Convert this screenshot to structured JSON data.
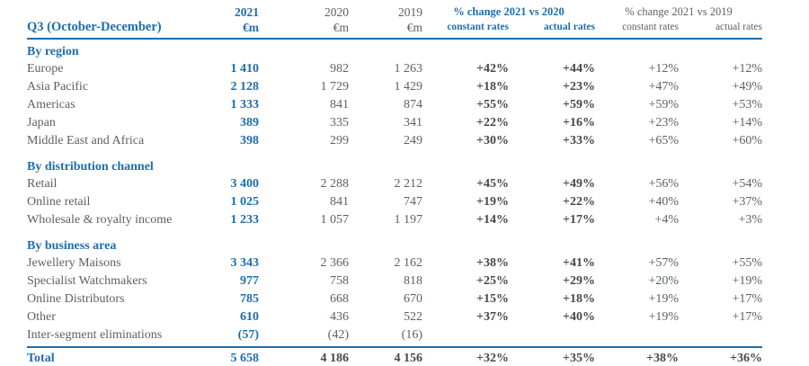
{
  "colors": {
    "accent_blue": "#1f6dad",
    "text_gray": "#5d6167",
    "text_dark": "#44474c"
  },
  "header": {
    "row_title": "Q3 (October-December)",
    "years": [
      {
        "label": "2021",
        "unit": "€m"
      },
      {
        "label": "2020",
        "unit": "€m"
      },
      {
        "label": "2019",
        "unit": "€m"
      }
    ],
    "groups": [
      {
        "label": "% change 2021 vs 2020",
        "sub_constant": "constant rates",
        "sub_actual": "actual rates"
      },
      {
        "label": "% change 2021 vs 2019",
        "sub_constant": "constant rates",
        "sub_actual": "actual rates"
      }
    ]
  },
  "sections": [
    {
      "title": "By region",
      "rows": [
        {
          "label": "Europe",
          "y2021": "1 410",
          "y2020": "982",
          "y2019": "1 263",
          "c20": "+42%",
          "a20": "+44%",
          "c19": "+12%",
          "a19": "+12%"
        },
        {
          "label": "Asia Pacific",
          "y2021": "2 128",
          "y2020": "1 729",
          "y2019": "1 429",
          "c20": "+18%",
          "a20": "+23%",
          "c19": "+47%",
          "a19": "+49%"
        },
        {
          "label": "Americas",
          "y2021": "1 333",
          "y2020": "841",
          "y2019": "874",
          "c20": "+55%",
          "a20": "+59%",
          "c19": "+59%",
          "a19": "+53%"
        },
        {
          "label": "Japan",
          "y2021": "389",
          "y2020": "335",
          "y2019": "341",
          "c20": "+22%",
          "a20": "+16%",
          "c19": "+23%",
          "a19": "+14%"
        },
        {
          "label": "Middle East and Africa",
          "y2021": "398",
          "y2020": "299",
          "y2019": "249",
          "c20": "+30%",
          "a20": "+33%",
          "c19": "+65%",
          "a19": "+60%"
        }
      ]
    },
    {
      "title": "By distribution channel",
      "rows": [
        {
          "label": "Retail",
          "y2021": "3 400",
          "y2020": "2 288",
          "y2019": "2 212",
          "c20": "+45%",
          "a20": "+49%",
          "c19": "+56%",
          "a19": "+54%"
        },
        {
          "label": "Online retail",
          "y2021": "1 025",
          "y2020": "841",
          "y2019": "747",
          "c20": "+19%",
          "a20": "+22%",
          "c19": "+40%",
          "a19": "+37%"
        },
        {
          "label": "Wholesale & royalty income",
          "y2021": "1 233",
          "y2020": "1 057",
          "y2019": "1 197",
          "c20": "+14%",
          "a20": "+17%",
          "c19": "+4%",
          "a19": "+3%"
        }
      ]
    },
    {
      "title": "By business area",
      "rows": [
        {
          "label": "Jewellery Maisons",
          "y2021": "3 343",
          "y2020": "2 366",
          "y2019": "2 162",
          "c20": "+38%",
          "a20": "+41%",
          "c19": "+57%",
          "a19": "+55%"
        },
        {
          "label": "Specialist Watchmakers",
          "y2021": "977",
          "y2020": "758",
          "y2019": "818",
          "c20": "+25%",
          "a20": "+29%",
          "c19": "+20%",
          "a19": "+19%"
        },
        {
          "label": "Online Distributors",
          "y2021": "785",
          "y2020": "668",
          "y2019": "670",
          "c20": "+15%",
          "a20": "+18%",
          "c19": "+19%",
          "a19": "+17%"
        },
        {
          "label": "Other",
          "y2021": "610",
          "y2020": "436",
          "y2019": "522",
          "c20": "+37%",
          "a20": "+40%",
          "c19": "+19%",
          "a19": "+17%"
        },
        {
          "label": "Inter-segment eliminations",
          "y2021": "(57)",
          "y2020": "(42)",
          "y2019": "(16)",
          "c20": "",
          "a20": "",
          "c19": "",
          "a19": ""
        }
      ]
    }
  ],
  "total": {
    "label": "Total",
    "y2021": "5 658",
    "y2020": "4 186",
    "y2019": "4 156",
    "c20": "+32%",
    "a20": "+35%",
    "c19": "+38%",
    "a19": "+36%"
  }
}
